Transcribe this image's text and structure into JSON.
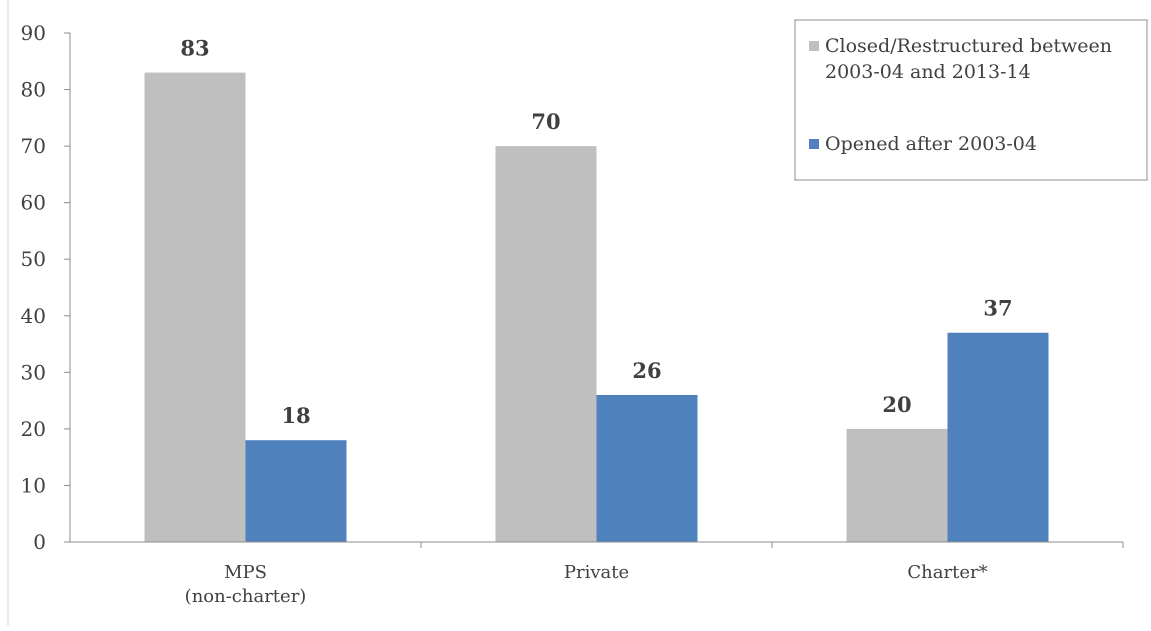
{
  "chart_data": {
    "type": "bar",
    "title": "",
    "xlabel": "",
    "ylabel": "",
    "categories": [
      [
        "MPS",
        "(non-charter)"
      ],
      [
        "Private"
      ],
      [
        "Charter*"
      ]
    ],
    "series": [
      {
        "name": "Closed/Restructured between 2003-04 and 2013-14",
        "legend_lines": [
          "Closed/Restructured between",
          "2003-04 and 2013-14"
        ],
        "values": [
          83,
          70,
          20
        ],
        "color": "#bfbfbf"
      },
      {
        "name": "Opened after 2003-04",
        "legend_lines": [
          "Opened after 2003-04"
        ],
        "values": [
          18,
          26,
          37
        ],
        "color": "#4f81bd"
      }
    ],
    "ylim": [
      0,
      90
    ],
    "yticks": [
      0,
      10,
      20,
      30,
      40,
      50,
      60,
      70,
      80,
      90
    ],
    "grid": false,
    "legend_position": "top-right",
    "data_labels": true
  }
}
